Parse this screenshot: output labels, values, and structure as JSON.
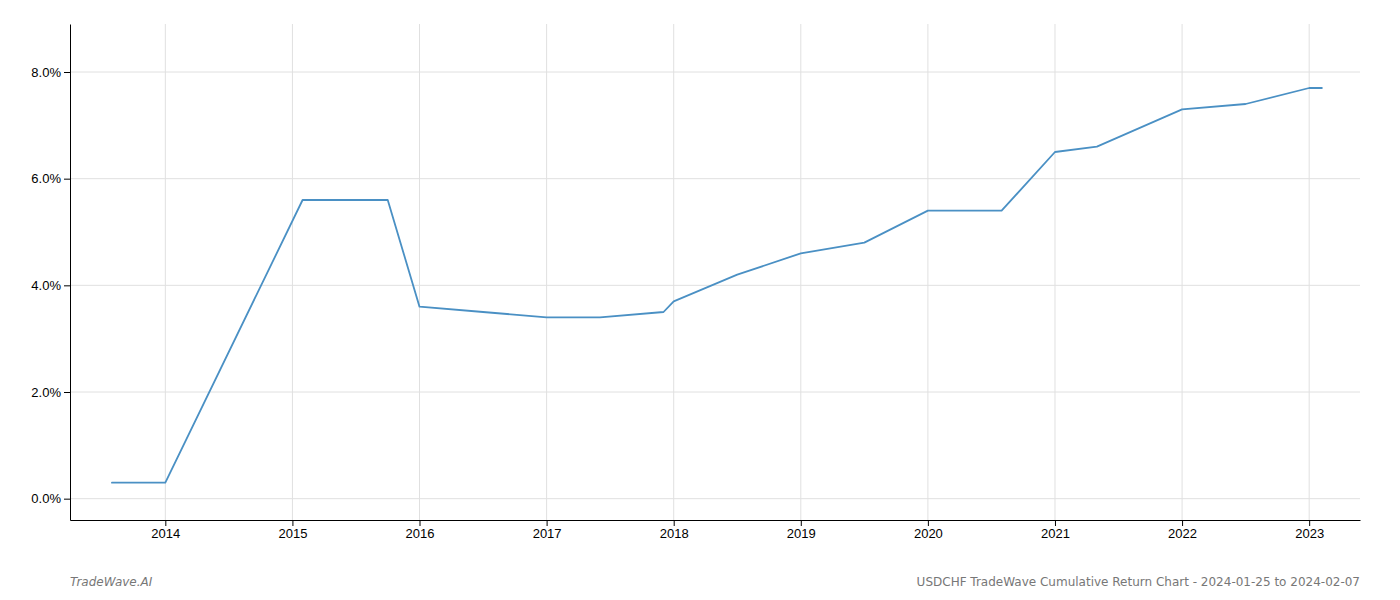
{
  "chart_data": {
    "type": "line",
    "x": [
      2013.58,
      2014.0,
      2015.08,
      2015.75,
      2016.0,
      2016.5,
      2017.0,
      2017.42,
      2017.92,
      2018.0,
      2018.5,
      2019.0,
      2019.5,
      2020.0,
      2020.33,
      2020.58,
      2021.0,
      2021.33,
      2022.0,
      2022.5,
      2023.0,
      2023.1
    ],
    "values": [
      0.003,
      0.003,
      0.056,
      0.056,
      0.036,
      0.035,
      0.034,
      0.034,
      0.035,
      0.037,
      0.042,
      0.046,
      0.048,
      0.054,
      0.054,
      0.054,
      0.065,
      0.066,
      0.073,
      0.074,
      0.077,
      0.077
    ],
    "color": "#4a90c4",
    "xlim": [
      2013.25,
      2023.4
    ],
    "ylim": [
      -0.004,
      0.089
    ],
    "xticks": [
      2014,
      2015,
      2016,
      2017,
      2018,
      2019,
      2020,
      2021,
      2022,
      2023
    ],
    "yticks": [
      {
        "value": 0.0,
        "label": "0.0%"
      },
      {
        "value": 0.02,
        "label": "2.0%"
      },
      {
        "value": 0.04,
        "label": "4.0%"
      },
      {
        "value": 0.06,
        "label": "6.0%"
      },
      {
        "value": 0.08,
        "label": "8.0%"
      }
    ],
    "grid": true,
    "annotations": [
      "TradeWave.AI",
      "USDCHF TradeWave Cumulative Return Chart - 2024-01-25 to 2024-02-07"
    ]
  }
}
